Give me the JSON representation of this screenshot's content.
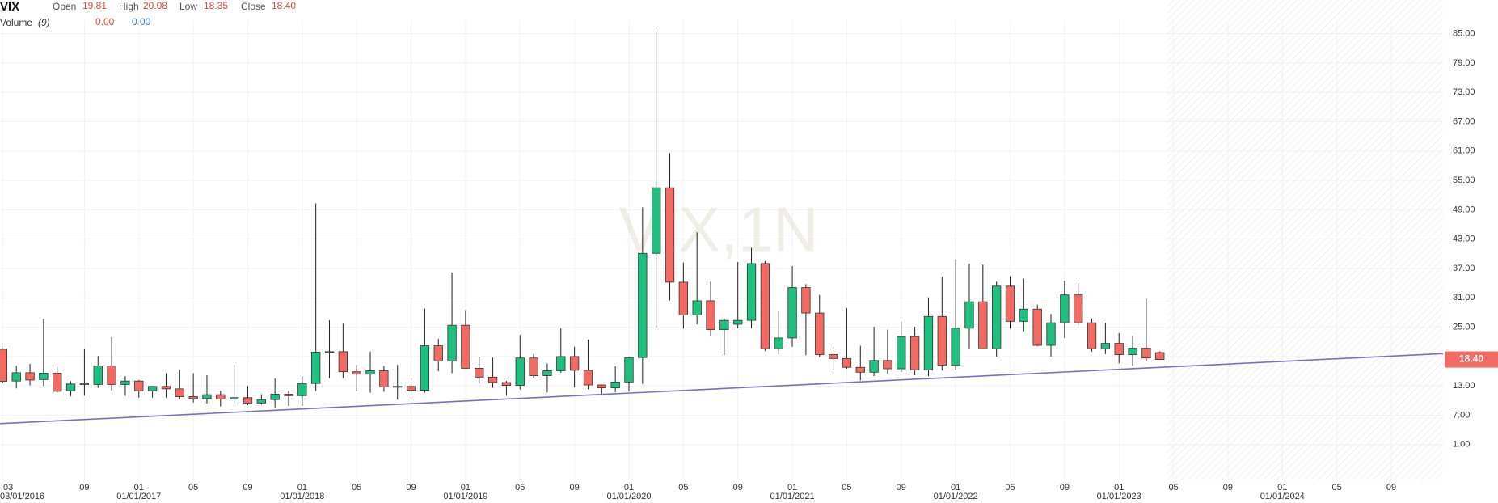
{
  "chart_data": {
    "type": "candlestick",
    "title": "VIX",
    "watermark": "VIX,1N",
    "ohlc_legend": {
      "labels": [
        "Open",
        "High",
        "Low",
        "Close"
      ],
      "values": [
        19.81,
        20.08,
        18.35,
        18.4
      ],
      "value_labels": [
        "19.81",
        "20.08",
        "18.35",
        "18.40"
      ]
    },
    "volume_legend": {
      "label": "Volume",
      "period": "(9)",
      "values": [
        0,
        0
      ],
      "value_labels": [
        "0.00",
        "0.00"
      ],
      "colors": [
        "#e0463c",
        "#2f7be0"
      ]
    },
    "up_color": "#1fbf80",
    "down_color": "#f06b63",
    "open": [
      20.5,
      14.0,
      15.7,
      14.3,
      15.6,
      12.0,
      13.5,
      13.3,
      17.1,
      13.3,
      14.0,
      12.0,
      12.9,
      12.4,
      10.8,
      10.4,
      11.2,
      10.3,
      10.6,
      9.5,
      10.2,
      11.3,
      11.0,
      13.5,
      19.9,
      20.0,
      15.9,
      15.4,
      16.1,
      12.8,
      12.9,
      12.1,
      21.2,
      18.1,
      25.4,
      16.6,
      14.8,
      13.7,
      13.1,
      18.7,
      15.1,
      16.1,
      19.0,
      16.2,
      13.2,
      12.6,
      13.8,
      18.8,
      40.1,
      53.5,
      34.2,
      27.5,
      30.4,
      24.5,
      25.6,
      26.4,
      38.0,
      20.6,
      22.8,
      33.1,
      27.9,
      19.4,
      18.6,
      16.8,
      15.8,
      18.2,
      16.5,
      23.1,
      16.3,
      27.2,
      17.2,
      24.8,
      30.2,
      20.6,
      33.4,
      26.2,
      28.7,
      21.3,
      25.9,
      31.6,
      25.9,
      20.6,
      21.7,
      19.4,
      20.7,
      19.81
    ],
    "high": [
      20.7,
      17.1,
      17.5,
      26.7,
      16.9,
      14.0,
      20.5,
      19.1,
      23.0,
      15.0,
      14.2,
      13.0,
      15.6,
      16.3,
      15.6,
      15.2,
      12.0,
      17.3,
      13.0,
      11.3,
      14.5,
      12.0,
      15.0,
      50.3,
      26.4,
      25.7,
      17.3,
      20.0,
      17.1,
      17.3,
      14.6,
      28.8,
      22.6,
      36.2,
      28.5,
      19.0,
      18.8,
      14.0,
      23.4,
      19.5,
      17.6,
      24.8,
      21.0,
      22.5,
      13.3,
      17.0,
      19.0,
      49.5,
      85.5,
      60.6,
      38.2,
      44.4,
      34.3,
      26.8,
      38.3,
      41.2,
      38.5,
      28.4,
      37.5,
      33.8,
      31.6,
      21.0,
      28.9,
      21.2,
      25.1,
      24.5,
      26.2,
      25.1,
      31.1,
      35.3,
      38.9,
      38.0,
      37.8,
      34.3,
      35.4,
      34.9,
      29.6,
      27.7,
      34.5,
      34.0,
      26.8,
      25.9,
      23.8,
      23.2,
      30.8,
      20.08
    ],
    "low": [
      13.7,
      12.5,
      13.1,
      13.0,
      11.6,
      10.9,
      11.0,
      12.6,
      12.1,
      11.0,
      10.6,
      10.6,
      10.6,
      10.3,
      9.6,
      9.4,
      8.8,
      9.5,
      9.1,
      9.2,
      8.6,
      8.9,
      8.9,
      12.0,
      14.6,
      14.6,
      11.9,
      11.6,
      11.8,
      10.2,
      11.1,
      11.6,
      16.0,
      15.6,
      16.6,
      13.5,
      12.6,
      11.0,
      12.3,
      14.7,
      11.7,
      15.7,
      12.7,
      12.3,
      11.4,
      11.7,
      11.8,
      13.4,
      25.0,
      30.5,
      24.7,
      25.6,
      23.1,
      19.3,
      24.8,
      24.8,
      20.1,
      19.5,
      21.0,
      19.3,
      18.9,
      16.3,
      16.5,
      14.1,
      15.0,
      15.5,
      15.8,
      15.2,
      15.0,
      16.2,
      16.3,
      20.5,
      20.5,
      19.0,
      24.7,
      24.2,
      21.1,
      19.0,
      22.8,
      25.4,
      20.0,
      19.5,
      17.6,
      17.1,
      18.0,
      18.35
    ],
    "close": [
      13.95,
      15.7,
      14.2,
      15.6,
      11.9,
      13.4,
      13.3,
      17.1,
      13.3,
      14.0,
      12.0,
      12.9,
      12.4,
      10.8,
      10.4,
      11.2,
      10.3,
      10.6,
      9.5,
      10.2,
      11.3,
      11.0,
      13.5,
      19.9,
      20.0,
      15.9,
      15.4,
      16.1,
      12.8,
      12.9,
      12.1,
      21.2,
      18.1,
      25.4,
      16.6,
      14.8,
      13.7,
      13.1,
      18.7,
      15.1,
      16.1,
      19.0,
      16.2,
      13.2,
      12.6,
      13.8,
      18.8,
      40.1,
      53.5,
      34.2,
      27.5,
      30.4,
      24.5,
      26.4,
      26.4,
      38.0,
      20.6,
      22.8,
      33.1,
      27.9,
      19.4,
      18.6,
      16.8,
      15.8,
      18.2,
      16.5,
      23.1,
      16.3,
      27.2,
      17.2,
      24.8,
      30.2,
      20.6,
      33.4,
      26.2,
      28.7,
      21.3,
      25.9,
      31.6,
      25.9,
      20.6,
      21.7,
      19.4,
      20.7,
      18.7,
      18.4
    ],
    "trendline": {
      "values": [
        5.3,
        19.6
      ],
      "color": "#7474bd"
    },
    "ylim": [
      -6.2,
      86
    ],
    "yticks": [
      {
        "value": 1,
        "label": "1.00"
      },
      {
        "value": 7,
        "label": "7.00"
      },
      {
        "value": 13,
        "label": "13.00"
      },
      {
        "value": 19,
        "label": "19.00"
      },
      {
        "value": 25,
        "label": "25.00"
      },
      {
        "value": 31,
        "label": "31.00"
      },
      {
        "value": 37,
        "label": "37.00"
      },
      {
        "value": 43,
        "label": "43.00"
      },
      {
        "value": 49,
        "label": "49.00"
      },
      {
        "value": 55,
        "label": "55.00"
      },
      {
        "value": 61,
        "label": "61.00"
      },
      {
        "value": 67,
        "label": "67.00"
      },
      {
        "value": 73,
        "label": "73.00"
      },
      {
        "value": 79,
        "label": "79.00"
      },
      {
        "value": 85,
        "label": "85.00"
      }
    ],
    "xlim": [
      -0.2,
      105.8
    ],
    "xticks": [
      {
        "value": 0,
        "label": "03"
      },
      {
        "value": 6,
        "label": "09"
      },
      {
        "value": 10,
        "label": "01"
      },
      {
        "value": 14,
        "label": "05"
      },
      {
        "value": 18,
        "label": "09"
      },
      {
        "value": 22,
        "label": "01"
      },
      {
        "value": 26,
        "label": "05"
      },
      {
        "value": 30,
        "label": "09"
      },
      {
        "value": 34,
        "label": "01"
      },
      {
        "value": 38,
        "label": "05"
      },
      {
        "value": 42,
        "label": "09"
      },
      {
        "value": 46,
        "label": "01"
      },
      {
        "value": 50,
        "label": "05"
      },
      {
        "value": 54,
        "label": "09"
      },
      {
        "value": 58,
        "label": "01"
      },
      {
        "value": 62,
        "label": "05"
      },
      {
        "value": 66,
        "label": "09"
      },
      {
        "value": 70,
        "label": "01"
      },
      {
        "value": 74,
        "label": "05"
      },
      {
        "value": 78,
        "label": "09"
      },
      {
        "value": 82,
        "label": "01"
      },
      {
        "value": 86,
        "label": "05"
      },
      {
        "value": 90,
        "label": "09"
      },
      {
        "value": 94,
        "label": "01"
      },
      {
        "value": 98,
        "label": "05"
      },
      {
        "value": 102,
        "label": "09"
      }
    ],
    "date_ticks": [
      {
        "value": 0,
        "label": "03/01/2016"
      },
      {
        "value": 10,
        "label": "01/01/2017"
      },
      {
        "value": 22,
        "label": "01/01/2018"
      },
      {
        "value": 34,
        "label": "01/01/2019"
      },
      {
        "value": 46,
        "label": "01/01/2020"
      },
      {
        "value": 58,
        "label": "01/01/2021"
      },
      {
        "value": 70,
        "label": "01/01/2022"
      },
      {
        "value": 82,
        "label": "01/01/2023"
      },
      {
        "value": 94,
        "label": "01/01/2024"
      }
    ],
    "grid": true
  }
}
